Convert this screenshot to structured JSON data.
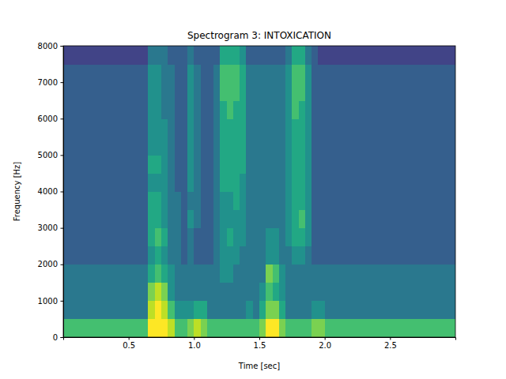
{
  "chart_data": {
    "type": "heatmap",
    "title": "Spectrogram 3: INTOXICATION",
    "x_label": "Time [sec]",
    "y_label": "Frequency [Hz]",
    "xlim": [
      0,
      3.0
    ],
    "ylim": [
      0,
      8000
    ],
    "xticks": [
      0.5,
      {
        "value": 1,
        "label": "1.0"
      },
      1.5,
      {
        "value": 2,
        "label": "2.0"
      },
      2.5
    ],
    "yticks": [
      0,
      1000,
      2000,
      3000,
      4000,
      5000,
      6000,
      7000,
      8000
    ],
    "zlim": [
      0,
      10
    ],
    "x": [
      0,
      0.05,
      0.1,
      0.15,
      0.2,
      0.25,
      0.3,
      0.35,
      0.4,
      0.45,
      0.5,
      0.55,
      0.6,
      0.65,
      0.7,
      0.75,
      0.8,
      0.85,
      0.9,
      0.95,
      1,
      1.05,
      1.1,
      1.15,
      1.2,
      1.25,
      1.3,
      1.35,
      1.4,
      1.45,
      1.5,
      1.55,
      1.6,
      1.65,
      1.7,
      1.75,
      1.8,
      1.85,
      1.9,
      1.95,
      2,
      2.05,
      2.1,
      2.15,
      2.2,
      2.25,
      2.3,
      2.35,
      2.4,
      2.45,
      2.5,
      2.55,
      2.6,
      2.65,
      2.7,
      2.75,
      2.8,
      2.85,
      2.9,
      2.95
    ],
    "y": [
      0,
      500,
      1000,
      1500,
      2000,
      2500,
      3000,
      3500,
      4000,
      4500,
      5000,
      5500,
      6000,
      6500,
      7000,
      7500
    ],
    "values": [
      [
        7,
        4,
        4,
        4,
        3,
        3,
        3,
        3,
        3,
        3,
        3,
        3,
        3,
        3,
        3,
        2
      ],
      [
        7,
        4,
        4,
        4,
        3,
        3,
        3,
        3,
        3,
        3,
        3,
        3,
        3,
        3,
        3,
        2
      ],
      [
        7,
        4,
        4,
        4,
        3,
        3,
        3,
        3,
        3,
        3,
        3,
        3,
        3,
        3,
        3,
        2
      ],
      [
        7,
        4,
        4,
        4,
        3,
        3,
        3,
        3,
        3,
        3,
        3,
        3,
        3,
        3,
        3,
        2
      ],
      [
        7,
        4,
        4,
        4,
        3,
        3,
        3,
        3,
        3,
        3,
        3,
        3,
        3,
        3,
        3,
        2
      ],
      [
        7,
        4,
        4,
        4,
        3,
        3,
        3,
        3,
        3,
        3,
        3,
        3,
        3,
        3,
        3,
        2
      ],
      [
        7,
        4,
        4,
        4,
        3,
        3,
        3,
        3,
        3,
        3,
        3,
        3,
        3,
        3,
        3,
        2
      ],
      [
        7,
        4,
        4,
        4,
        3,
        3,
        3,
        3,
        3,
        3,
        3,
        3,
        3,
        3,
        3,
        2
      ],
      [
        7,
        4,
        4,
        4,
        3,
        3,
        3,
        3,
        3,
        3,
        3,
        3,
        3,
        3,
        3,
        2
      ],
      [
        7,
        4,
        4,
        4,
        3,
        3,
        3,
        3,
        3,
        3,
        3,
        3,
        3,
        3,
        3,
        2
      ],
      [
        7,
        4,
        4,
        4,
        3,
        3,
        3,
        3,
        3,
        3,
        3,
        3,
        3,
        3,
        3,
        2
      ],
      [
        7,
        4,
        4,
        4,
        3,
        3,
        3,
        3,
        3,
        3,
        3,
        3,
        3,
        3,
        3,
        2
      ],
      [
        7,
        4,
        4,
        4,
        3,
        3,
        3,
        3,
        3,
        3,
        3,
        3,
        3,
        3,
        3,
        2
      ],
      [
        10,
        9,
        8,
        6,
        5,
        6,
        6,
        6,
        5,
        6,
        5,
        5,
        5,
        5,
        5,
        4
      ],
      [
        10,
        10,
        9,
        7,
        6,
        7,
        6,
        6,
        5,
        6,
        5,
        5,
        5,
        5,
        5,
        4
      ],
      [
        10,
        9,
        8,
        6,
        5,
        6,
        5,
        5,
        5,
        5,
        5,
        5,
        4,
        4,
        4,
        4
      ],
      [
        9,
        7,
        5,
        5,
        4,
        4,
        4,
        4,
        4,
        4,
        4,
        4,
        4,
        4,
        4,
        3
      ],
      [
        7,
        5,
        4,
        4,
        4,
        4,
        4,
        4,
        3,
        3,
        3,
        3,
        3,
        3,
        3,
        3
      ],
      [
        7,
        5,
        4,
        4,
        3,
        3,
        3,
        3,
        3,
        3,
        3,
        3,
        3,
        3,
        3,
        3
      ],
      [
        8,
        5,
        4,
        4,
        4,
        4,
        5,
        4,
        5,
        5,
        5,
        5,
        5,
        5,
        5,
        4
      ],
      [
        9,
        6,
        4,
        4,
        3,
        3,
        4,
        4,
        4,
        4,
        4,
        4,
        4,
        4,
        4,
        3
      ],
      [
        8,
        6,
        4,
        4,
        3,
        3,
        3,
        3,
        3,
        3,
        3,
        3,
        3,
        3,
        3,
        3
      ],
      [
        7,
        4,
        4,
        4,
        3,
        3,
        3,
        3,
        3,
        3,
        3,
        3,
        3,
        3,
        3,
        3
      ],
      [
        7,
        4,
        4,
        4,
        4,
        4,
        4,
        4,
        4,
        4,
        4,
        4,
        4,
        4,
        4,
        3
      ],
      [
        7,
        4,
        4,
        5,
        5,
        5,
        5,
        5,
        6,
        6,
        6,
        6,
        6,
        7,
        7,
        6
      ],
      [
        7,
        4,
        4,
        5,
        5,
        6,
        5,
        5,
        6,
        6,
        6,
        6,
        7,
        7,
        7,
        6
      ],
      [
        7,
        4,
        4,
        4,
        5,
        5,
        5,
        6,
        6,
        6,
        6,
        6,
        6,
        7,
        7,
        6
      ],
      [
        7,
        4,
        4,
        4,
        4,
        5,
        5,
        5,
        5,
        6,
        6,
        6,
        6,
        6,
        6,
        5
      ],
      [
        7,
        5,
        4,
        4,
        4,
        4,
        4,
        4,
        4,
        4,
        4,
        4,
        4,
        4,
        4,
        3
      ],
      [
        7,
        4,
        4,
        4,
        4,
        4,
        4,
        4,
        4,
        4,
        4,
        4,
        4,
        4,
        4,
        3
      ],
      [
        8,
        6,
        5,
        4,
        4,
        4,
        4,
        4,
        4,
        4,
        4,
        4,
        4,
        4,
        4,
        3
      ],
      [
        10,
        8,
        7,
        8,
        5,
        5,
        4,
        4,
        4,
        4,
        4,
        4,
        4,
        4,
        4,
        3
      ],
      [
        10,
        8,
        6,
        7,
        5,
        5,
        4,
        4,
        4,
        4,
        4,
        4,
        4,
        4,
        4,
        3
      ],
      [
        8,
        6,
        5,
        5,
        4,
        4,
        4,
        4,
        4,
        4,
        4,
        4,
        4,
        4,
        4,
        3
      ],
      [
        7,
        4,
        4,
        4,
        4,
        5,
        5,
        5,
        5,
        5,
        5,
        5,
        5,
        5,
        5,
        4
      ],
      [
        7,
        4,
        4,
        4,
        5,
        6,
        6,
        6,
        6,
        6,
        6,
        6,
        7,
        7,
        7,
        6
      ],
      [
        7,
        4,
        4,
        4,
        5,
        6,
        7,
        6,
        6,
        6,
        6,
        6,
        6,
        7,
        7,
        6
      ],
      [
        7,
        4,
        4,
        4,
        4,
        5,
        5,
        5,
        5,
        5,
        5,
        5,
        5,
        5,
        5,
        4
      ],
      [
        8,
        5,
        4,
        4,
        3,
        3,
        3,
        3,
        3,
        3,
        3,
        3,
        3,
        3,
        3,
        3
      ],
      [
        8,
        5,
        4,
        4,
        3,
        3,
        3,
        3,
        3,
        3,
        3,
        3,
        3,
        3,
        3,
        2
      ],
      [
        7,
        4,
        4,
        4,
        3,
        3,
        3,
        3,
        3,
        3,
        3,
        3,
        3,
        3,
        3,
        2
      ],
      [
        7,
        4,
        4,
        4,
        3,
        3,
        3,
        3,
        3,
        3,
        3,
        3,
        3,
        3,
        3,
        2
      ],
      [
        7,
        4,
        4,
        4,
        3,
        3,
        3,
        3,
        3,
        3,
        3,
        3,
        3,
        3,
        3,
        2
      ],
      [
        7,
        4,
        4,
        4,
        3,
        3,
        3,
        3,
        3,
        3,
        3,
        3,
        3,
        3,
        3,
        2
      ],
      [
        7,
        4,
        4,
        4,
        3,
        3,
        3,
        3,
        3,
        3,
        3,
        3,
        3,
        3,
        3,
        2
      ],
      [
        7,
        4,
        4,
        4,
        3,
        3,
        3,
        3,
        3,
        3,
        3,
        3,
        3,
        3,
        3,
        2
      ],
      [
        7,
        4,
        4,
        4,
        3,
        3,
        3,
        3,
        3,
        3,
        3,
        3,
        3,
        3,
        3,
        2
      ],
      [
        7,
        4,
        4,
        4,
        3,
        3,
        3,
        3,
        3,
        3,
        3,
        3,
        3,
        3,
        3,
        2
      ],
      [
        7,
        4,
        4,
        4,
        3,
        3,
        3,
        3,
        3,
        3,
        3,
        3,
        3,
        3,
        3,
        2
      ],
      [
        7,
        4,
        4,
        4,
        3,
        3,
        3,
        3,
        3,
        3,
        3,
        3,
        3,
        3,
        3,
        2
      ],
      [
        7,
        4,
        4,
        4,
        3,
        3,
        3,
        3,
        3,
        3,
        3,
        3,
        3,
        3,
        3,
        2
      ],
      [
        7,
        4,
        4,
        4,
        3,
        3,
        3,
        3,
        3,
        3,
        3,
        3,
        3,
        3,
        3,
        2
      ],
      [
        7,
        4,
        4,
        4,
        3,
        3,
        3,
        3,
        3,
        3,
        3,
        3,
        3,
        3,
        3,
        2
      ],
      [
        7,
        4,
        4,
        4,
        3,
        3,
        3,
        3,
        3,
        3,
        3,
        3,
        3,
        3,
        3,
        2
      ],
      [
        7,
        4,
        4,
        4,
        3,
        3,
        3,
        3,
        3,
        3,
        3,
        3,
        3,
        3,
        3,
        2
      ],
      [
        7,
        4,
        4,
        4,
        3,
        3,
        3,
        3,
        3,
        3,
        3,
        3,
        3,
        3,
        3,
        2
      ],
      [
        7,
        4,
        4,
        4,
        3,
        3,
        3,
        3,
        3,
        3,
        3,
        3,
        3,
        3,
        3,
        2
      ],
      [
        7,
        4,
        4,
        4,
        3,
        3,
        3,
        3,
        3,
        3,
        3,
        3,
        3,
        3,
        3,
        2
      ],
      [
        7,
        4,
        4,
        4,
        3,
        3,
        3,
        3,
        3,
        3,
        3,
        3,
        3,
        3,
        3,
        2
      ],
      [
        7,
        4,
        4,
        4,
        3,
        3,
        3,
        3,
        3,
        3,
        3,
        3,
        3,
        3,
        3,
        2
      ]
    ]
  }
}
